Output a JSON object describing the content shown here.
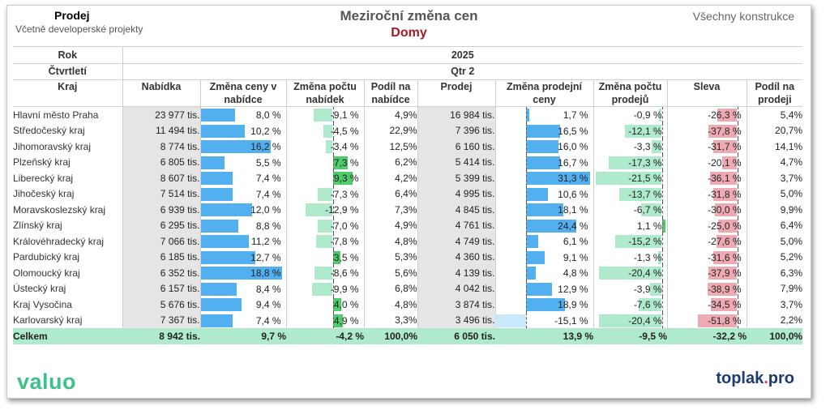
{
  "header": {
    "left_title": "Prodej",
    "left_subtitle": "Včetně developerské projekty",
    "center_title": "Meziroční změna cen",
    "center_subtitle": "Domy",
    "right_text": "Všechny konstrukce"
  },
  "table": {
    "row_rok_label": "Rok",
    "row_rok_value": "2025",
    "row_ctvrtleti_label": "Čtvrtletí",
    "row_ctvrtleti_value": "Qtr 2",
    "columns": [
      "Kraj",
      "Nabídka",
      "Změna ceny v nabídce",
      "Změna počtu nabídek",
      "Podíl na nabídce",
      "Prodej",
      "Změna prodejní ceny",
      "Změna počtu prodejů",
      "Sleva",
      "Podíl na prodeji"
    ],
    "rows": [
      {
        "kraj": "Hlavní město Praha",
        "nabidka": "23 977 tis.",
        "zmena_ceny": "8,0 %",
        "zmena_poctu": "-9,1 %",
        "podil_nabidka": "4,9%",
        "prodej": "16 984 tis.",
        "zmena_prodejni": "1,7 %",
        "zmena_prodeju": "-0,9 %",
        "sleva": "-26,3 %",
        "podil_prodej": "5,4%"
      },
      {
        "kraj": "Středočeský kraj",
        "nabidka": "11 494 tis.",
        "zmena_ceny": "10,2 %",
        "zmena_poctu": "-4,5 %",
        "podil_nabidka": "22,9%",
        "prodej": "7 396 tis.",
        "zmena_prodejni": "16,5 %",
        "zmena_prodeju": "-12,1 %",
        "sleva": "-37,8 %",
        "podil_prodej": "20,7%"
      },
      {
        "kraj": "Jihomoravský kraj",
        "nabidka": "8 774 tis.",
        "zmena_ceny": "16,2 %",
        "zmena_poctu": "-3,4 %",
        "podil_nabidka": "12,5%",
        "prodej": "6 160 tis.",
        "zmena_prodejni": "16,0 %",
        "zmena_prodeju": "-3,3 %",
        "sleva": "-31,7 %",
        "podil_prodej": "14,1%"
      },
      {
        "kraj": "Plzeňský kraj",
        "nabidka": "6 805 tis.",
        "zmena_ceny": "5,5 %",
        "zmena_poctu": "7,3 %",
        "podil_nabidka": "6,2%",
        "prodej": "5 414 tis.",
        "zmena_prodejni": "16,7 %",
        "zmena_prodeju": "-17,3 %",
        "sleva": "-20,1 %",
        "podil_prodej": "4,7%"
      },
      {
        "kraj": "Liberecký kraj",
        "nabidka": "8 607 tis.",
        "zmena_ceny": "7,4 %",
        "zmena_poctu": "9,3 %",
        "podil_nabidka": "4,2%",
        "prodej": "5 399 tis.",
        "zmena_prodejni": "31,3 %",
        "zmena_prodeju": "-21,5 %",
        "sleva": "-36,1 %",
        "podil_prodej": "3,7%"
      },
      {
        "kraj": "Jihočeský kraj",
        "nabidka": "7 514 tis.",
        "zmena_ceny": "7,4 %",
        "zmena_poctu": "-7,3 %",
        "podil_nabidka": "6,4%",
        "prodej": "4 995 tis.",
        "zmena_prodejni": "10,6 %",
        "zmena_prodeju": "-13,7 %",
        "sleva": "-31,8 %",
        "podil_prodej": "5,0%"
      },
      {
        "kraj": "Moravskoslezský kraj",
        "nabidka": "6 939 tis.",
        "zmena_ceny": "12,0 %",
        "zmena_poctu": "-12,9 %",
        "podil_nabidka": "7,3%",
        "prodej": "4 845 tis.",
        "zmena_prodejni": "18,1 %",
        "zmena_prodeju": "-6,7 %",
        "sleva": "-30,0 %",
        "podil_prodej": "9,9%"
      },
      {
        "kraj": "Zlínský kraj",
        "nabidka": "6 295 tis.",
        "zmena_ceny": "8,8 %",
        "zmena_poctu": "-7,0 %",
        "podil_nabidka": "4,9%",
        "prodej": "4 761 tis.",
        "zmena_prodejni": "24,4 %",
        "zmena_prodeju": "1,1 %",
        "sleva": "-25,0 %",
        "podil_prodej": "6,4%"
      },
      {
        "kraj": "Královéhradecký kraj",
        "nabidka": "7 066 tis.",
        "zmena_ceny": "11,2 %",
        "zmena_poctu": "-7,8 %",
        "podil_nabidka": "4,8%",
        "prodej": "4 749 tis.",
        "zmena_prodejni": "6,1 %",
        "zmena_prodeju": "-15,2 %",
        "sleva": "-27,6 %",
        "podil_prodej": "5,0%"
      },
      {
        "kraj": "Pardubický kraj",
        "nabidka": "6 185 tis.",
        "zmena_ceny": "12,7 %",
        "zmena_poctu": "3,5 %",
        "podil_nabidka": "5,3%",
        "prodej": "4 360 tis.",
        "zmena_prodejni": "9,1 %",
        "zmena_prodeju": "-1,3 %",
        "sleva": "-31,6 %",
        "podil_prodej": "5,2%"
      },
      {
        "kraj": "Olomoucký kraj",
        "nabidka": "6 352 tis.",
        "zmena_ceny": "18,8 %",
        "zmena_poctu": "-8,6 %",
        "podil_nabidka": "5,6%",
        "prodej": "4 139 tis.",
        "zmena_prodejni": "4,8 %",
        "zmena_prodeju": "-20,4 %",
        "sleva": "-37,9 %",
        "podil_prodej": "6,3%"
      },
      {
        "kraj": "Ústecký kraj",
        "nabidka": "6 157 tis.",
        "zmena_ceny": "8,4 %",
        "zmena_poctu": "-9,9 %",
        "podil_nabidka": "6,8%",
        "prodej": "4 042 tis.",
        "zmena_prodejni": "12,9 %",
        "zmena_prodeju": "-3,9 %",
        "sleva": "-38,9 %",
        "podil_prodej": "7,9%"
      },
      {
        "kraj": "Kraj Vysočina",
        "nabidka": "5 676 tis.",
        "zmena_ceny": "9,4 %",
        "zmena_poctu": "4,0 %",
        "podil_nabidka": "4,8%",
        "prodej": "3 874 tis.",
        "zmena_prodejni": "18,9 %",
        "zmena_prodeju": "-7,6 %",
        "sleva": "-34,5 %",
        "podil_prodej": "3,7%"
      },
      {
        "kraj": "Karlovarský kraj",
        "nabidka": "7 367 tis.",
        "zmena_ceny": "7,4 %",
        "zmena_poctu": "4,9 %",
        "podil_nabidka": "3,3%",
        "prodej": "3 496 tis.",
        "zmena_prodejni": "-15,1 %",
        "zmena_prodeju": "-20,4 %",
        "sleva": "-51,8 %",
        "podil_prodej": "2,2%"
      }
    ],
    "total": {
      "kraj": "Celkem",
      "nabidka": "8 942 tis.",
      "zmena_ceny": "9,7 %",
      "zmena_poctu": "-4,2 %",
      "podil_nabidka": "100,0%",
      "prodej": "6 050 tis.",
      "zmena_prodejni": "13,9 %",
      "zmena_prodeju": "-9,5 %",
      "sleva": "-32,2 %",
      "podil_prodej": "100,0%"
    }
  },
  "footer": {
    "logo_left": "valuo",
    "logo_right_main": "toplak",
    "logo_right_dot": ".",
    "logo_right_suffix": "pro"
  },
  "colors": {
    "bar_blue": "#52b0f1",
    "bar_light_blue": "#c9e9fb",
    "bar_light_green": "#aeeacb",
    "bar_dark_green": "#4ecb6b",
    "bar_pink": "#eeaab3",
    "total_row": "#aeeacb",
    "subtitle_red": "#a01c24"
  }
}
